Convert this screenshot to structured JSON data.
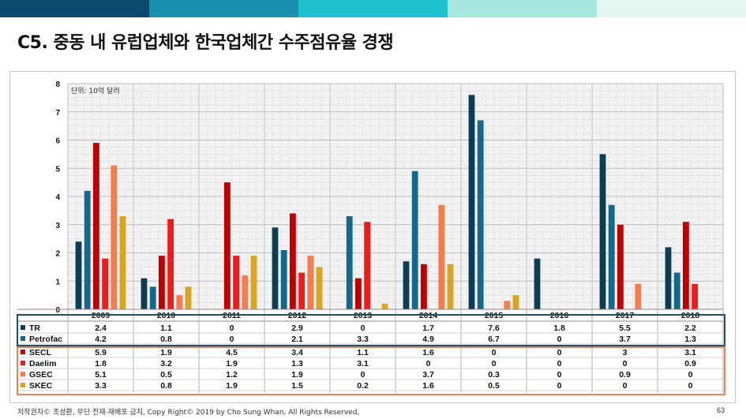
{
  "header": {
    "colors": [
      "#0c4a6e",
      "#1a8fb0",
      "#1fc2cc",
      "#a6e8de",
      "#e3f6f1"
    ],
    "title": "C5. 중동 내 유럽업체와 한국업체간 수주점유율 경쟁"
  },
  "chart_data": {
    "type": "bar",
    "title": "",
    "unit_note": "단위: 10억 달러",
    "xlabel": "",
    "ylabel": "",
    "ylim": [
      0,
      8
    ],
    "yticks": [
      "0",
      "1",
      "2",
      "3",
      "4",
      "5",
      "6",
      "7",
      "8"
    ],
    "grid": true,
    "legend": "data-table",
    "categories": [
      "2009",
      "2010",
      "2011",
      "2012",
      "2013",
      "2014",
      "2015",
      "2016",
      "2017",
      "2018"
    ],
    "series": [
      {
        "name": "TR",
        "color": "#0d3c55",
        "values": [
          2.4,
          1.1,
          0,
          2.9,
          0,
          1.7,
          7.6,
          1.8,
          5.5,
          2.2
        ]
      },
      {
        "name": "Petrofac",
        "color": "#13698c",
        "values": [
          4.2,
          0.8,
          0,
          2.1,
          3.3,
          4.9,
          6.7,
          0,
          3.7,
          1.3
        ]
      },
      {
        "name": "SECL",
        "color": "#c00000",
        "values": [
          5.9,
          1.9,
          4.5,
          3.4,
          1.1,
          1.6,
          0,
          0,
          3,
          3.1
        ]
      },
      {
        "name": "Daelim",
        "color": "#ee1c1c",
        "values": [
          1.8,
          3.2,
          1.9,
          1.3,
          3.1,
          0,
          0,
          0,
          0,
          0.9
        ]
      },
      {
        "name": "GSEC",
        "color": "#f47c4e",
        "values": [
          5.1,
          0.5,
          1.2,
          1.9,
          0,
          3.7,
          0.3,
          0,
          0.9,
          0
        ]
      },
      {
        "name": "SKEC",
        "color": "#d9a520",
        "values": [
          3.3,
          0.8,
          1.9,
          1.5,
          0.2,
          1.6,
          0.5,
          0,
          0,
          0
        ]
      }
    ],
    "group_box_colors": {
      "europe": "#1d4f6b",
      "korea": "#e8845a"
    }
  },
  "footer": {
    "copyright": "저작권자© 조성환, 무단 전재-재배포 금지, Copy Right© 2019 by Cho Sung Whan, All Rights Reserved,",
    "page": "63"
  }
}
